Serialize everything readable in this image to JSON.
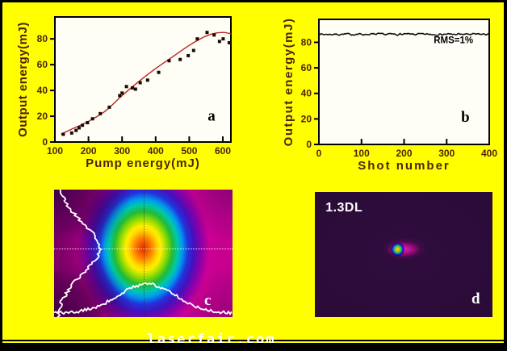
{
  "figure": {
    "watermark": "laserfair.com",
    "background": "#ffff00",
    "border_color": "#000000"
  },
  "colors": {
    "axis_text": "#52220a",
    "fit_curve": "#bb2222",
    "data_points": "#190b02",
    "trace": "#111111",
    "panel_letter": "#000000",
    "plot_bg": "#fffef6"
  },
  "chart_data": [
    {
      "type": "scatter",
      "panel_label": "a",
      "xlabel": "Pump energy(mJ)",
      "ylabel": "Output energy(mJ)",
      "xlim": [
        100,
        624
      ],
      "ylim": [
        0,
        97
      ],
      "xticks": [
        100,
        200,
        300,
        400,
        500,
        600
      ],
      "yticks": [
        0,
        20,
        40,
        60,
        80
      ],
      "label_pos": [
        0.89,
        0.83
      ],
      "points": [
        [
          125,
          6
        ],
        [
          150,
          7
        ],
        [
          163,
          9
        ],
        [
          172,
          11
        ],
        [
          182,
          13
        ],
        [
          197,
          15
        ],
        [
          212,
          18
        ],
        [
          235,
          22
        ],
        [
          262,
          27
        ],
        [
          293,
          36
        ],
        [
          300,
          38
        ],
        [
          313,
          43
        ],
        [
          331,
          42
        ],
        [
          340,
          41
        ],
        [
          354,
          46
        ],
        [
          376,
          48
        ],
        [
          409,
          54
        ],
        [
          440,
          63
        ],
        [
          473,
          64
        ],
        [
          497,
          67
        ],
        [
          513,
          71
        ],
        [
          524,
          80
        ],
        [
          553,
          85
        ],
        [
          574,
          83
        ],
        [
          590,
          78
        ],
        [
          601,
          80
        ],
        [
          619,
          77
        ]
      ],
      "fit_curve": [
        [
          118,
          6
        ],
        [
          150,
          10
        ],
        [
          200,
          16
        ],
        [
          250,
          24
        ],
        [
          300,
          36
        ],
        [
          350,
          47
        ],
        [
          400,
          57
        ],
        [
          450,
          66
        ],
        [
          500,
          75
        ],
        [
          540,
          81
        ],
        [
          570,
          84
        ],
        [
          600,
          85
        ],
        [
          624,
          84
        ]
      ]
    },
    {
      "type": "line",
      "panel_label": "b",
      "xlabel": "Shot number",
      "ylabel": "Output energy(mJ)",
      "xlim": [
        0,
        400
      ],
      "ylim": [
        0,
        98
      ],
      "xticks": [
        0,
        100,
        200,
        300,
        400
      ],
      "yticks": [
        0,
        20,
        40,
        60,
        80
      ],
      "label_pos": [
        0.86,
        0.82
      ],
      "annotation": "RMS=1%",
      "annotation_pos": [
        0.79,
        0.19
      ],
      "mean": 86.3,
      "noise_amp": 1.1,
      "n_points": 200
    },
    {
      "type": "heatmap",
      "panel_label": "c",
      "description": "near-field beam profile, rainbow colormap, with vertical and horizontal intensity cross-sections",
      "beam_center": [
        0.5,
        0.46
      ],
      "colormap": [
        "#e03000",
        "#ff7700",
        "#ffee00",
        "#99dd00",
        "#22bb33",
        "#00c8aa",
        "#0099ee",
        "#2233dd",
        "#4411bb",
        "#8800aa",
        "#cc0095"
      ],
      "profiles": {
        "vertical": {
          "center": 0.46,
          "sigma": 0.2,
          "amp": 52
        },
        "horizontal": {
          "center": 0.52,
          "sigma": 0.16,
          "amp": 36
        }
      }
    },
    {
      "type": "heatmap",
      "panel_label": "d",
      "annotation": "1.3DL",
      "description": "far-field focal spot on dark background",
      "spot_center": [
        0.49,
        0.46
      ]
    }
  ]
}
